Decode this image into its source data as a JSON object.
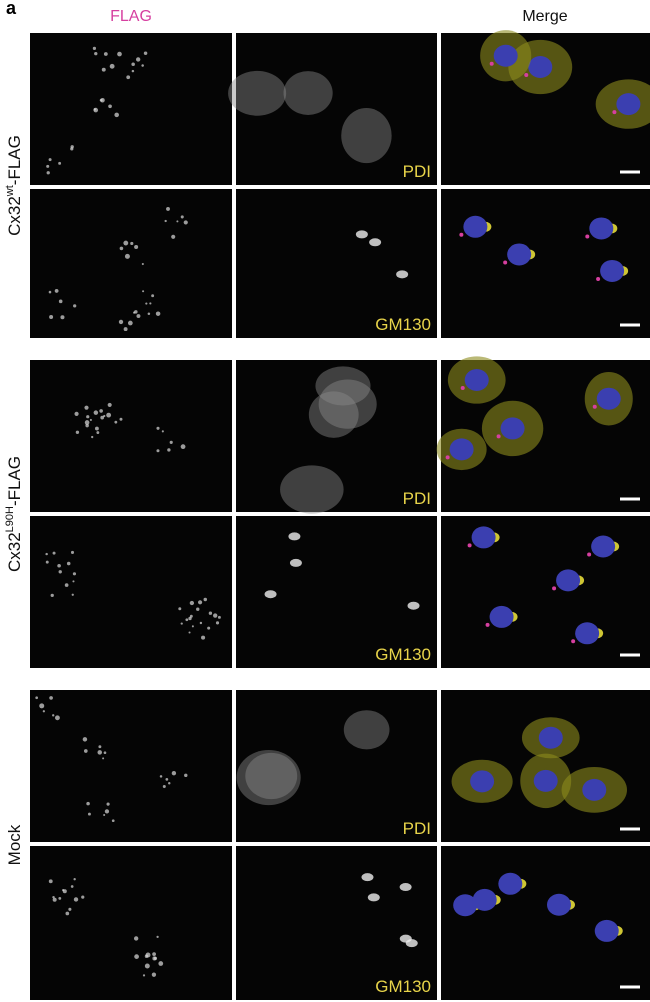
{
  "panel_label": "a",
  "column_headers": {
    "flag": "FLAG",
    "merge": "Merge"
  },
  "groups": [
    {
      "label": {
        "base": "Cx32",
        "superscript": "wt",
        "suffix": "-FLAG"
      },
      "rows": [
        {
          "marker": "PDI"
        },
        {
          "marker": "GM130"
        }
      ]
    },
    {
      "label": {
        "base": "Cx32",
        "superscript": "L90H",
        "suffix": "-FLAG"
      },
      "rows": [
        {
          "marker": "PDI"
        },
        {
          "marker": "GM130"
        }
      ]
    },
    {
      "label": {
        "base": "Mock"
      },
      "rows": [
        {
          "marker": "PDI"
        },
        {
          "marker": "GM130"
        }
      ]
    }
  ]
}
